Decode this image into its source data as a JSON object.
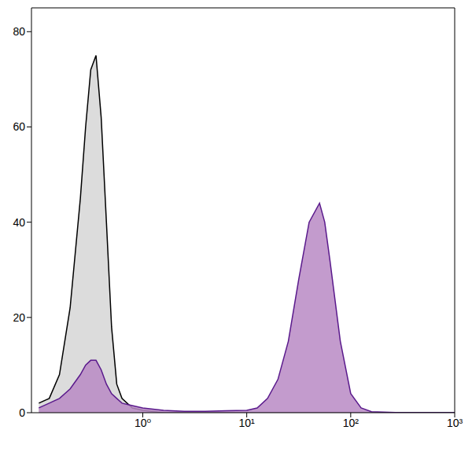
{
  "chart_data": {
    "type": "area",
    "log": "x",
    "grid": false,
    "x": [
      0.1,
      0.126,
      0.158,
      0.2,
      0.251,
      0.282,
      0.316,
      0.355,
      0.398,
      0.447,
      0.501,
      0.562,
      0.631,
      0.794,
      1,
      1.585,
      2.512,
      3.981,
      6.31,
      10,
      12.59,
      15.85,
      19.95,
      25.12,
      31.62,
      39.81,
      50.12,
      56.23,
      63.1,
      79.43,
      100,
      125.9,
      158.5,
      316.2,
      1000
    ],
    "series": [
      {
        "color": "#dcdcdc",
        "values": [
          2,
          3,
          8,
          22,
          45,
          60,
          72,
          75,
          62,
          40,
          18,
          6,
          3,
          1,
          0.5,
          0,
          0,
          0,
          0,
          0,
          0,
          0,
          0,
          0,
          0,
          0,
          0,
          0,
          0,
          0,
          0,
          0,
          0,
          0,
          0
        ]
      },
      {
        "color": "#b98ac4",
        "values": [
          1,
          2,
          3,
          5,
          8,
          10,
          11,
          11,
          9,
          6,
          4,
          3,
          2,
          1.5,
          1,
          0.5,
          0.3,
          0.3,
          0.4,
          0.5,
          1,
          3,
          7,
          15,
          28,
          40,
          44,
          40,
          32,
          15,
          4,
          1,
          0.2,
          0,
          0
        ]
      }
    ],
    "xlim": [
      0.085,
      1000
    ],
    "xticks": [
      {
        "value": 1,
        "label": "10⁰"
      },
      {
        "value": 10,
        "label": "10¹"
      },
      {
        "value": 100,
        "label": "10²"
      },
      {
        "value": 1000,
        "label": "10³"
      }
    ],
    "ylim": [
      0,
      85
    ],
    "yticks": [
      0,
      20,
      40,
      60,
      80
    ]
  }
}
